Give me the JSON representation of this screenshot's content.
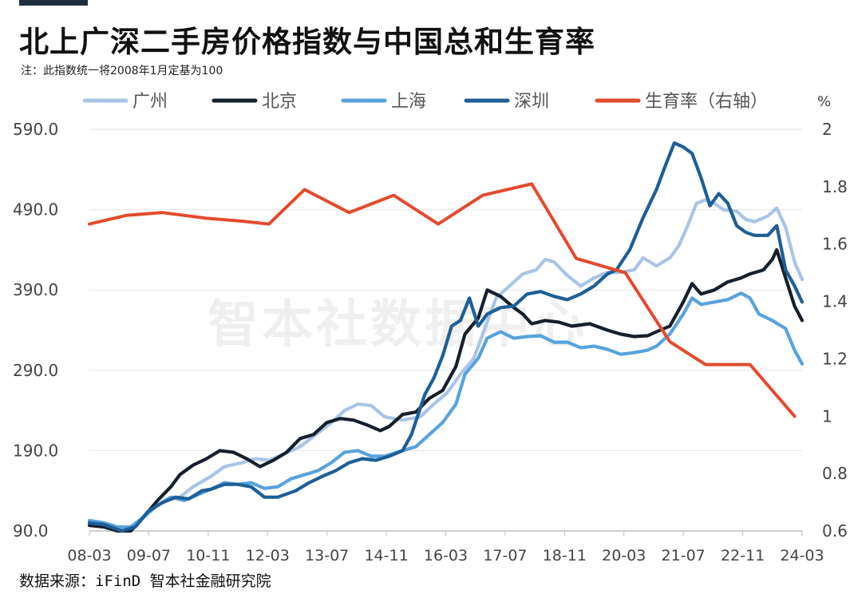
{
  "header": {
    "title": "北上广深二手房价格指数与中国总和生育率",
    "note": "注：此指数统一将2008年1月定基为100"
  },
  "watermark": "智本社数据中心",
  "source": "数据来源：iFinD 智本社金融研究院",
  "chart_data": {
    "type": "line",
    "title": "北上广深二手房价格指数与中国总和生育率",
    "y_left": {
      "ticks": [
        "590.0",
        "490.0",
        "390.0",
        "290.0",
        "190.0",
        "90.0"
      ],
      "range": [
        90,
        590
      ]
    },
    "y_right": {
      "unit": "%",
      "ticks": [
        "2",
        "1.8",
        "1.6",
        "1.4",
        "1.2",
        "1",
        "0.8",
        "0.6"
      ],
      "range": [
        0.6,
        2.0
      ]
    },
    "x_ticks": [
      "08-03",
      "09-07",
      "10-11",
      "12-03",
      "13-07",
      "14-11",
      "16-03",
      "17-07",
      "18-11",
      "20-03",
      "21-07",
      "22-11",
      "24-03"
    ],
    "x_range": [
      2008.17,
      2024.17
    ],
    "legend_position": "top",
    "grid": "horizontal",
    "series": [
      {
        "name": "广州",
        "axis": "left",
        "color": "#a9c4e6",
        "points": [
          [
            2008.17,
            100
          ],
          [
            2008.5,
            98
          ],
          [
            2008.9,
            93
          ],
          [
            2009.2,
            97
          ],
          [
            2009.55,
            118
          ],
          [
            2009.9,
            128
          ],
          [
            2010.2,
            132
          ],
          [
            2010.5,
            145
          ],
          [
            2010.9,
            158
          ],
          [
            2011.2,
            170
          ],
          [
            2011.6,
            175
          ],
          [
            2011.9,
            180
          ],
          [
            2012.2,
            178
          ],
          [
            2012.5,
            185
          ],
          [
            2012.9,
            195
          ],
          [
            2013.3,
            212
          ],
          [
            2013.6,
            225
          ],
          [
            2013.9,
            240
          ],
          [
            2014.2,
            248
          ],
          [
            2014.5,
            246
          ],
          [
            2014.8,
            232
          ],
          [
            2015.2,
            228
          ],
          [
            2015.6,
            232
          ],
          [
            2015.9,
            248
          ],
          [
            2016.2,
            262
          ],
          [
            2016.5,
            285
          ],
          [
            2016.8,
            305
          ],
          [
            2017.0,
            335
          ],
          [
            2017.3,
            380
          ],
          [
            2017.6,
            395
          ],
          [
            2017.9,
            410
          ],
          [
            2018.2,
            415
          ],
          [
            2018.4,
            428
          ],
          [
            2018.6,
            425
          ],
          [
            2018.9,
            408
          ],
          [
            2019.2,
            395
          ],
          [
            2019.5,
            405
          ],
          [
            2019.8,
            412
          ],
          [
            2020.1,
            412
          ],
          [
            2020.4,
            415
          ],
          [
            2020.6,
            430
          ],
          [
            2020.9,
            420
          ],
          [
            2021.2,
            430
          ],
          [
            2021.4,
            445
          ],
          [
            2021.6,
            470
          ],
          [
            2021.8,
            498
          ],
          [
            2022.0,
            502
          ],
          [
            2022.2,
            498
          ],
          [
            2022.4,
            490
          ],
          [
            2022.7,
            488
          ],
          [
            2022.9,
            478
          ],
          [
            2023.1,
            475
          ],
          [
            2023.4,
            482
          ],
          [
            2023.6,
            492
          ],
          [
            2023.8,
            468
          ],
          [
            2024.0,
            425
          ],
          [
            2024.17,
            403
          ]
        ]
      },
      {
        "name": "北京",
        "axis": "left",
        "color": "#16202d",
        "points": [
          [
            2008.17,
            97
          ],
          [
            2008.5,
            95
          ],
          [
            2008.8,
            90
          ],
          [
            2009.1,
            90
          ],
          [
            2009.4,
            108
          ],
          [
            2009.7,
            128
          ],
          [
            2010.0,
            145
          ],
          [
            2010.2,
            160
          ],
          [
            2010.5,
            172
          ],
          [
            2010.8,
            180
          ],
          [
            2011.1,
            190
          ],
          [
            2011.4,
            188
          ],
          [
            2011.7,
            180
          ],
          [
            2012.0,
            170
          ],
          [
            2012.3,
            178
          ],
          [
            2012.6,
            188
          ],
          [
            2012.9,
            205
          ],
          [
            2013.2,
            210
          ],
          [
            2013.5,
            225
          ],
          [
            2013.8,
            230
          ],
          [
            2014.1,
            228
          ],
          [
            2014.4,
            222
          ],
          [
            2014.7,
            215
          ],
          [
            2014.9,
            220
          ],
          [
            2015.2,
            235
          ],
          [
            2015.5,
            238
          ],
          [
            2015.8,
            255
          ],
          [
            2016.1,
            265
          ],
          [
            2016.4,
            295
          ],
          [
            2016.6,
            335
          ],
          [
            2016.9,
            355
          ],
          [
            2017.1,
            390
          ],
          [
            2017.4,
            382
          ],
          [
            2017.7,
            368
          ],
          [
            2017.9,
            360
          ],
          [
            2018.1,
            348
          ],
          [
            2018.4,
            352
          ],
          [
            2018.7,
            350
          ],
          [
            2019.0,
            345
          ],
          [
            2019.4,
            348
          ],
          [
            2019.8,
            340
          ],
          [
            2020.1,
            335
          ],
          [
            2020.4,
            332
          ],
          [
            2020.7,
            333
          ],
          [
            2020.9,
            338
          ],
          [
            2021.2,
            345
          ],
          [
            2021.5,
            375
          ],
          [
            2021.7,
            398
          ],
          [
            2021.9,
            385
          ],
          [
            2022.2,
            390
          ],
          [
            2022.5,
            400
          ],
          [
            2022.8,
            405
          ],
          [
            2023.0,
            410
          ],
          [
            2023.3,
            415
          ],
          [
            2023.5,
            428
          ],
          [
            2023.6,
            440
          ],
          [
            2023.8,
            405
          ],
          [
            2024.0,
            370
          ],
          [
            2024.17,
            352
          ]
        ]
      },
      {
        "name": "上海",
        "axis": "left",
        "color": "#57a3dc",
        "points": [
          [
            2008.17,
            103
          ],
          [
            2008.5,
            100
          ],
          [
            2008.8,
            95
          ],
          [
            2009.1,
            95
          ],
          [
            2009.4,
            108
          ],
          [
            2009.7,
            122
          ],
          [
            2010.0,
            132
          ],
          [
            2010.3,
            128
          ],
          [
            2010.6,
            135
          ],
          [
            2010.9,
            142
          ],
          [
            2011.2,
            150
          ],
          [
            2011.5,
            148
          ],
          [
            2011.8,
            150
          ],
          [
            2012.1,
            143
          ],
          [
            2012.4,
            145
          ],
          [
            2012.7,
            155
          ],
          [
            2013.0,
            160
          ],
          [
            2013.3,
            165
          ],
          [
            2013.6,
            175
          ],
          [
            2013.9,
            188
          ],
          [
            2014.2,
            190
          ],
          [
            2014.5,
            183
          ],
          [
            2014.8,
            183
          ],
          [
            2015.2,
            190
          ],
          [
            2015.5,
            195
          ],
          [
            2015.8,
            210
          ],
          [
            2016.1,
            225
          ],
          [
            2016.4,
            248
          ],
          [
            2016.6,
            285
          ],
          [
            2016.9,
            305
          ],
          [
            2017.1,
            330
          ],
          [
            2017.4,
            338
          ],
          [
            2017.7,
            330
          ],
          [
            2018.0,
            332
          ],
          [
            2018.3,
            333
          ],
          [
            2018.6,
            325
          ],
          [
            2018.9,
            325
          ],
          [
            2019.2,
            318
          ],
          [
            2019.5,
            320
          ],
          [
            2019.8,
            316
          ],
          [
            2020.1,
            310
          ],
          [
            2020.4,
            312
          ],
          [
            2020.7,
            315
          ],
          [
            2020.9,
            320
          ],
          [
            2021.2,
            335
          ],
          [
            2021.5,
            360
          ],
          [
            2021.7,
            380
          ],
          [
            2021.9,
            372
          ],
          [
            2022.2,
            375
          ],
          [
            2022.5,
            378
          ],
          [
            2022.8,
            386
          ],
          [
            2023.0,
            380
          ],
          [
            2023.2,
            360
          ],
          [
            2023.5,
            352
          ],
          [
            2023.8,
            342
          ],
          [
            2024.0,
            315
          ],
          [
            2024.17,
            298
          ]
        ]
      },
      {
        "name": "深圳",
        "axis": "left",
        "color": "#1d5f96",
        "points": [
          [
            2008.17,
            100
          ],
          [
            2008.5,
            98
          ],
          [
            2008.9,
            90
          ],
          [
            2009.2,
            95
          ],
          [
            2009.5,
            115
          ],
          [
            2009.8,
            125
          ],
          [
            2010.1,
            132
          ],
          [
            2010.4,
            130
          ],
          [
            2010.7,
            140
          ],
          [
            2010.9,
            142
          ],
          [
            2011.2,
            148
          ],
          [
            2011.5,
            148
          ],
          [
            2011.8,
            145
          ],
          [
            2012.1,
            132
          ],
          [
            2012.4,
            132
          ],
          [
            2012.8,
            140
          ],
          [
            2013.1,
            150
          ],
          [
            2013.4,
            158
          ],
          [
            2013.7,
            165
          ],
          [
            2014.0,
            175
          ],
          [
            2014.3,
            180
          ],
          [
            2014.6,
            178
          ],
          [
            2014.9,
            183
          ],
          [
            2015.2,
            190
          ],
          [
            2015.4,
            210
          ],
          [
            2015.7,
            260
          ],
          [
            2015.9,
            280
          ],
          [
            2016.1,
            308
          ],
          [
            2016.3,
            345
          ],
          [
            2016.5,
            352
          ],
          [
            2016.7,
            380
          ],
          [
            2016.9,
            345
          ],
          [
            2017.1,
            360
          ],
          [
            2017.4,
            368
          ],
          [
            2017.7,
            370
          ],
          [
            2018.0,
            385
          ],
          [
            2018.3,
            388
          ],
          [
            2018.6,
            382
          ],
          [
            2018.9,
            378
          ],
          [
            2019.2,
            385
          ],
          [
            2019.5,
            395
          ],
          [
            2019.8,
            410
          ],
          [
            2020.0,
            415
          ],
          [
            2020.3,
            440
          ],
          [
            2020.6,
            480
          ],
          [
            2020.9,
            515
          ],
          [
            2021.1,
            545
          ],
          [
            2021.3,
            573
          ],
          [
            2021.5,
            568
          ],
          [
            2021.7,
            560
          ],
          [
            2021.9,
            530
          ],
          [
            2022.1,
            495
          ],
          [
            2022.3,
            510
          ],
          [
            2022.5,
            498
          ],
          [
            2022.7,
            470
          ],
          [
            2022.9,
            462
          ],
          [
            2023.1,
            458
          ],
          [
            2023.4,
            458
          ],
          [
            2023.6,
            470
          ],
          [
            2023.8,
            415
          ],
          [
            2024.0,
            395
          ],
          [
            2024.17,
            375
          ]
        ]
      },
      {
        "name": "生育率（右轴）",
        "axis": "right",
        "color": "#e24b2c",
        "points": [
          [
            2008.17,
            1.67
          ],
          [
            2009.0,
            1.7
          ],
          [
            2009.8,
            1.71
          ],
          [
            2010.8,
            1.69
          ],
          [
            2011.6,
            1.68
          ],
          [
            2012.2,
            1.67
          ],
          [
            2013.0,
            1.79
          ],
          [
            2014.0,
            1.71
          ],
          [
            2015.0,
            1.77
          ],
          [
            2016.0,
            1.67
          ],
          [
            2017.0,
            1.77
          ],
          [
            2018.1,
            1.81
          ],
          [
            2019.1,
            1.55
          ],
          [
            2020.2,
            1.5
          ],
          [
            2021.2,
            1.26
          ],
          [
            2022.0,
            1.18
          ],
          [
            2023.0,
            1.18
          ],
          [
            2024.0,
            1.0
          ]
        ]
      }
    ]
  }
}
